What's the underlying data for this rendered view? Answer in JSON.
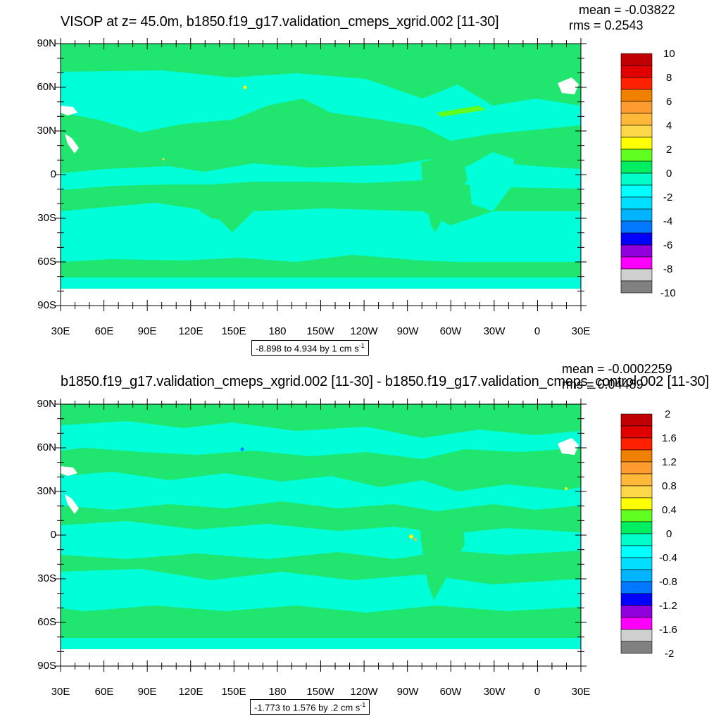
{
  "chart_data": [
    {
      "type": "heatmap",
      "title": "VISOP at z=  45.0m, b1850.f19_g17.validation_cmeps_xgrid.002 [11-30]",
      "stats": {
        "mean": "mean = -0.03822",
        "rms": "rms = 0.2543"
      },
      "range_text": "-8.898 to 4.934 by 1 cm s",
      "range_unit_exp": "-1",
      "y_ticks": [
        "90N",
        "60N",
        "30N",
        "0",
        "30S",
        "60S",
        "90S"
      ],
      "x_ticks": [
        "30E",
        "60E",
        "90E",
        "120E",
        "150E",
        "180",
        "150W",
        "120W",
        "90W",
        "60W",
        "30W",
        "0",
        "30E"
      ],
      "colorbar_labels": [
        "10",
        "8",
        "6",
        "4",
        "2",
        "0",
        "-2",
        "-4",
        "-6",
        "-8",
        "-10"
      ],
      "levels_range": [
        -10,
        10
      ],
      "colors": [
        "#c00000",
        "#e00000",
        "#ff2000",
        "#f08000",
        "#ff9c30",
        "#ffb838",
        "#ffd84a",
        "#ffff00",
        "#60ff20",
        "#00ee60",
        "#00ffc8",
        "#00ffff",
        "#00dfff",
        "#00b4ff",
        "#0078ff",
        "#0000ff",
        "#9000dc",
        "#ff00ff",
        "#d0d0d0",
        "#808080"
      ]
    },
    {
      "type": "heatmap",
      "title": "b1850.f19_g17.validation_cmeps_xgrid.002 [11-30] - b1850.f19_g17.validation_cmeps_control.002 [11-30]",
      "stats": {
        "mean": "mean = -0.0002259",
        "rms": "rms = 0.04489"
      },
      "range_text": "-1.773 to 1.576 by .2 cm s",
      "range_unit_exp": "-1",
      "y_ticks": [
        "90N",
        "60N",
        "30N",
        "0",
        "30S",
        "60S",
        "90S"
      ],
      "x_ticks": [
        "30E",
        "60E",
        "90E",
        "120E",
        "150E",
        "180",
        "150W",
        "120W",
        "90W",
        "60W",
        "30W",
        "0",
        "30E"
      ],
      "colorbar_labels": [
        "2",
        "1.6",
        "1.2",
        "0.8",
        "0.4",
        "0",
        "-0.4",
        "-0.8",
        "-1.2",
        "-1.6",
        "-2"
      ],
      "levels_range": [
        -2,
        2
      ],
      "colors": [
        "#c00000",
        "#e00000",
        "#ff2000",
        "#f08000",
        "#ff9c30",
        "#ffb838",
        "#ffd84a",
        "#ffff00",
        "#60ff20",
        "#00ee60",
        "#00ffc8",
        "#00ffff",
        "#00dfff",
        "#00b4ff",
        "#0078ff",
        "#0000ff",
        "#9000dc",
        "#ff00ff",
        "#d0d0d0",
        "#808080"
      ]
    }
  ],
  "palette": {
    "land_green": "#20e670",
    "ocean_cyan": "#00ffd8",
    "missing_white": "#ffffff"
  }
}
